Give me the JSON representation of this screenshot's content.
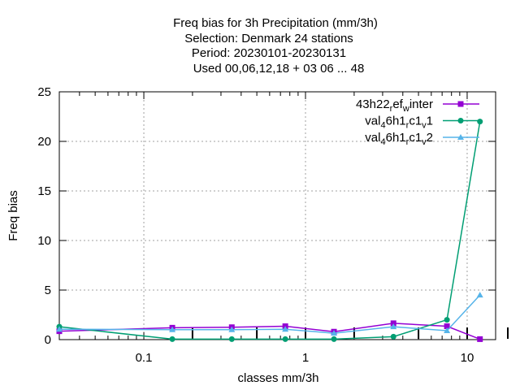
{
  "chart_data": {
    "type": "line",
    "title_lines": [
      "Freq bias  for 3h Precipitation (mm/3h)",
      "Selection: Denmark      24 stations",
      "Period: 20230101-20230131",
      "Used  00,06,12,18  + 03 06 ... 48"
    ],
    "xlabel": "classes mm/3h",
    "ylabel": "Freq bias",
    "xscale": "log",
    "xlim": [
      0.03,
      15
    ],
    "ylim": [
      0,
      25
    ],
    "xticks": [
      0.1,
      1,
      10
    ],
    "xtick_labels": [
      "0.1",
      "1",
      "10"
    ],
    "yticks": [
      0,
      5,
      10,
      15,
      20,
      25
    ],
    "ytick_labels": [
      "0",
      "5",
      "10",
      "15",
      "20",
      "25"
    ],
    "grid": true,
    "legend_position": "top-right",
    "class_markers": [
      0.2,
      0.5,
      1,
      2,
      5,
      10,
      20
    ],
    "series": [
      {
        "name": "43h22_ref_winter",
        "legend_base": "43h22",
        "legend_sub1": "r",
        "legend_mid": "ef",
        "legend_sub2": "w",
        "legend_end": "inter",
        "color": "#9400d3",
        "marker": "square",
        "x": [
          0.03,
          0.15,
          0.35,
          0.75,
          1.5,
          3.5,
          7.5,
          12
        ],
        "y": [
          0.85,
          1.2,
          1.25,
          1.35,
          0.8,
          1.65,
          1.35,
          0.05
        ]
      },
      {
        "name": "val_46h1_rc1_v1",
        "legend_base": "val",
        "legend_sub1": "4",
        "legend_mid": "6h1",
        "legend_sub2": "r",
        "legend_mid2": "c1",
        "legend_sub3": "v",
        "legend_end": "1",
        "color": "#009e73",
        "marker": "circle",
        "x": [
          0.03,
          0.15,
          0.35,
          0.75,
          1.5,
          3.5,
          7.5,
          12
        ],
        "y": [
          1.3,
          0.05,
          0.05,
          0.05,
          0.05,
          0.3,
          2.0,
          22.0
        ]
      },
      {
        "name": "val_46h1_rc1_v2",
        "legend_base": "val",
        "legend_sub1": "4",
        "legend_mid": "6h1",
        "legend_sub2": "r",
        "legend_mid2": "c1",
        "legend_sub3": "v",
        "legend_end": "2",
        "color": "#56b4e9",
        "marker": "triangle",
        "x": [
          0.03,
          0.15,
          0.35,
          0.75,
          1.5,
          3.5,
          7.5,
          12
        ],
        "y": [
          1.05,
          1.0,
          1.0,
          1.05,
          0.65,
          1.3,
          0.9,
          4.5
        ]
      }
    ]
  }
}
